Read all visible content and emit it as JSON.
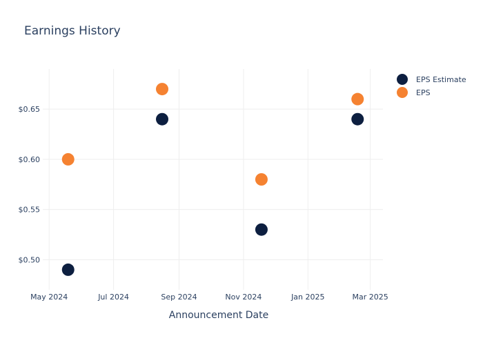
{
  "chart_data": {
    "type": "scatter",
    "title": "Earnings History",
    "xlabel": "Announcement Date",
    "ylabel": "",
    "x_ticks": [
      {
        "date": "2024-05-01",
        "label": "May 2024"
      },
      {
        "date": "2024-07-01",
        "label": "Jul 2024"
      },
      {
        "date": "2024-09-01",
        "label": "Sep 2024"
      },
      {
        "date": "2024-11-01",
        "label": "Nov 2024"
      },
      {
        "date": "2025-01-01",
        "label": "Jan 2025"
      },
      {
        "date": "2025-03-01",
        "label": "Mar 2025"
      }
    ],
    "y_ticks": [
      {
        "value": 0.5,
        "label": "$0.50"
      },
      {
        "value": 0.55,
        "label": "$0.55"
      },
      {
        "value": 0.6,
        "label": "$0.60"
      },
      {
        "value": 0.65,
        "label": "$0.65"
      }
    ],
    "xlim": [
      "2024-04-25",
      "2025-03-13"
    ],
    "ylim": [
      0.47,
      0.69
    ],
    "grid": true,
    "legend_position": "top-right",
    "series": [
      {
        "name": "EPS Estimate",
        "color": "#0d1f40",
        "points": [
          {
            "x": "2024-05-19",
            "y": 0.49
          },
          {
            "x": "2024-08-16",
            "y": 0.64
          },
          {
            "x": "2024-11-18",
            "y": 0.53
          },
          {
            "x": "2025-02-17",
            "y": 0.64
          }
        ]
      },
      {
        "name": "EPS",
        "color": "#f58231",
        "points": [
          {
            "x": "2024-05-19",
            "y": 0.6
          },
          {
            "x": "2024-08-16",
            "y": 0.67
          },
          {
            "x": "2024-11-18",
            "y": 0.58
          },
          {
            "x": "2025-02-17",
            "y": 0.66
          }
        ]
      }
    ]
  }
}
